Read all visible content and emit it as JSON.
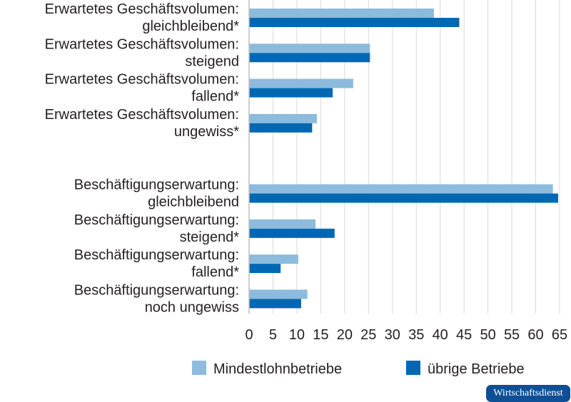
{
  "chart_data": {
    "type": "bar",
    "orientation": "horizontal",
    "categories": [
      [
        "Erwartetes Geschäftsvolumen:",
        "gleichbleibend*"
      ],
      [
        "Erwartetes Geschäftsvolumen:",
        "steigend"
      ],
      [
        "Erwartetes Geschäftsvolumen:",
        "fallend*"
      ],
      [
        "Erwartetes Geschäftsvolumen:",
        "ungewiss*"
      ],
      [
        "Beschäftigungserwartung:",
        "gleichbleibend"
      ],
      [
        "Beschäftigungserwartung:",
        "steigend*"
      ],
      [
        "Beschäftigungserwartung:",
        "fallend*"
      ],
      [
        "Beschäftigungserwartung:",
        "noch ungewiss"
      ]
    ],
    "series": [
      {
        "name": "Mindestlohnbetriebe",
        "color": "#8cbbdd",
        "values": [
          38.7,
          25.3,
          21.8,
          14.2,
          63.6,
          13.9,
          10.3,
          12.2
        ]
      },
      {
        "name": "übrige Betriebe",
        "color": "#0068b3",
        "values": [
          44.0,
          25.3,
          17.5,
          13.2,
          64.7,
          17.9,
          6.6,
          10.9
        ]
      }
    ],
    "xlim": [
      0,
      65
    ],
    "xticks": [
      "0",
      "5",
      "10",
      "15",
      "20",
      "25",
      "30",
      "35",
      "40",
      "45",
      "50",
      "55",
      "60",
      "65"
    ],
    "grid": true,
    "legend": "bottom",
    "title": "",
    "xlabel": "",
    "ylabel": ""
  },
  "badge": "Wirtschaftsdienst"
}
